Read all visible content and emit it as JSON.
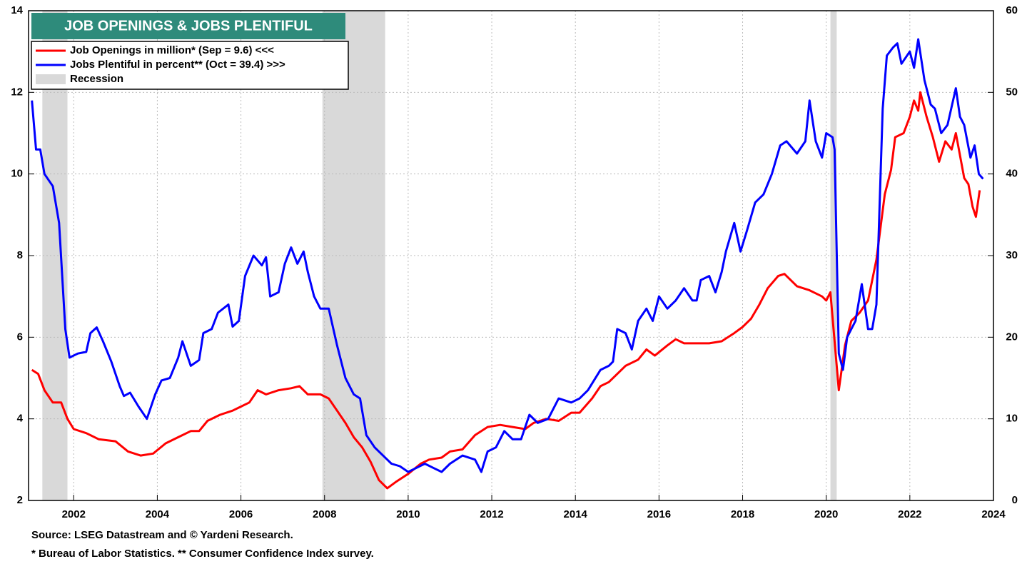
{
  "chart_data": {
    "type": "line",
    "title": "JOB OPENINGS & JOBS PLENTIFUL",
    "footnotes": [
      "Source: LSEG Datastream and © Yardeni Research.",
      "* Bureau of Labor Statistics.  ** Consumer Confidence Index survey."
    ],
    "xlim": [
      2000.92,
      2024
    ],
    "xticks": [
      2002,
      2004,
      2006,
      2008,
      2010,
      2012,
      2014,
      2016,
      2018,
      2020,
      2022,
      2024
    ],
    "ylim": [
      2,
      14
    ],
    "yticks": [
      2,
      4,
      6,
      8,
      10,
      12,
      14
    ],
    "y2lim": [
      0,
      60
    ],
    "y2ticks": [
      0,
      10,
      20,
      30,
      40,
      50,
      60
    ],
    "grid": true,
    "recession_label": "Recession",
    "recession_color": "#d9d9d9",
    "recessions": [
      [
        2001.25,
        2001.85
      ],
      [
        2007.95,
        2009.45
      ],
      [
        2020.1,
        2020.25
      ]
    ],
    "series": [
      {
        "name": "Job Openings in million* (Sep = 9.6) <<<",
        "color": "#ff0000",
        "axis": "y",
        "x": [
          2001.0,
          2001.15,
          2001.3,
          2001.5,
          2001.7,
          2001.85,
          2002.0,
          2002.3,
          2002.6,
          2003.0,
          2003.3,
          2003.6,
          2003.9,
          2004.2,
          2004.5,
          2004.8,
          2005.0,
          2005.2,
          2005.5,
          2005.8,
          2006.0,
          2006.2,
          2006.4,
          2006.6,
          2006.9,
          2007.2,
          2007.4,
          2007.6,
          2007.9,
          2008.1,
          2008.3,
          2008.5,
          2008.7,
          2008.9,
          2009.1,
          2009.3,
          2009.5,
          2009.7,
          2010.0,
          2010.3,
          2010.5,
          2010.8,
          2011.0,
          2011.3,
          2011.6,
          2011.9,
          2012.2,
          2012.5,
          2012.8,
          2013.0,
          2013.3,
          2013.6,
          2013.9,
          2014.1,
          2014.4,
          2014.6,
          2014.8,
          2015.0,
          2015.2,
          2015.5,
          2015.7,
          2015.9,
          2016.2,
          2016.4,
          2016.6,
          2016.9,
          2017.2,
          2017.5,
          2017.8,
          2018.0,
          2018.2,
          2018.4,
          2018.6,
          2018.85,
          2019.0,
          2019.3,
          2019.6,
          2019.9,
          2020.0,
          2020.1,
          2020.3,
          2020.45,
          2020.6,
          2020.8,
          2021.0,
          2021.2,
          2021.4,
          2021.55,
          2021.65,
          2021.85,
          2022.0,
          2022.1,
          2022.2,
          2022.25,
          2022.4,
          2022.55,
          2022.7,
          2022.85,
          2023.0,
          2023.1,
          2023.3,
          2023.4,
          2023.5,
          2023.58,
          2023.67
        ],
        "values": [
          5.2,
          5.1,
          4.7,
          4.4,
          4.4,
          4.0,
          3.75,
          3.65,
          3.5,
          3.45,
          3.2,
          3.1,
          3.15,
          3.4,
          3.55,
          3.7,
          3.7,
          3.95,
          4.1,
          4.2,
          4.3,
          4.4,
          4.7,
          4.6,
          4.7,
          4.75,
          4.8,
          4.6,
          4.6,
          4.5,
          4.2,
          3.9,
          3.55,
          3.3,
          2.95,
          2.5,
          2.3,
          2.45,
          2.65,
          2.9,
          3.0,
          3.05,
          3.2,
          3.25,
          3.6,
          3.8,
          3.85,
          3.8,
          3.75,
          3.9,
          4.0,
          3.95,
          4.15,
          4.15,
          4.5,
          4.8,
          4.9,
          5.1,
          5.3,
          5.45,
          5.7,
          5.55,
          5.8,
          5.95,
          5.85,
          5.85,
          5.85,
          5.9,
          6.1,
          6.25,
          6.45,
          6.8,
          7.2,
          7.5,
          7.55,
          7.25,
          7.15,
          7.0,
          6.9,
          7.1,
          4.7,
          5.8,
          6.4,
          6.6,
          6.9,
          7.9,
          9.5,
          10.1,
          10.9,
          11.0,
          11.4,
          11.8,
          11.55,
          12.0,
          11.4,
          10.9,
          10.3,
          10.8,
          10.6,
          11.0,
          9.9,
          9.75,
          9.2,
          8.95,
          9.6
        ]
      },
      {
        "name": "Jobs Plentiful in percent** (Oct = 39.4) >>>",
        "color": "#0000ff",
        "axis": "y2",
        "x": [
          2001.0,
          2001.1,
          2001.2,
          2001.3,
          2001.5,
          2001.65,
          2001.8,
          2001.9,
          2002.1,
          2002.3,
          2002.4,
          2002.55,
          2002.7,
          2002.9,
          2003.1,
          2003.2,
          2003.35,
          2003.55,
          2003.75,
          2003.95,
          2004.1,
          2004.3,
          2004.5,
          2004.6,
          2004.8,
          2005.0,
          2005.1,
          2005.3,
          2005.45,
          2005.7,
          2005.8,
          2005.95,
          2006.1,
          2006.3,
          2006.5,
          2006.6,
          2006.7,
          2006.9,
          2007.05,
          2007.2,
          2007.35,
          2007.5,
          2007.6,
          2007.75,
          2007.9,
          2008.1,
          2008.3,
          2008.5,
          2008.7,
          2008.85,
          2009.0,
          2009.2,
          2009.4,
          2009.6,
          2009.8,
          2010.0,
          2010.2,
          2010.4,
          2010.6,
          2010.8,
          2011.0,
          2011.3,
          2011.6,
          2011.75,
          2011.9,
          2012.1,
          2012.3,
          2012.5,
          2012.7,
          2012.9,
          2013.1,
          2013.35,
          2013.6,
          2013.9,
          2014.1,
          2014.3,
          2014.6,
          2014.8,
          2014.9,
          2015.0,
          2015.2,
          2015.35,
          2015.5,
          2015.7,
          2015.85,
          2016.0,
          2016.2,
          2016.4,
          2016.6,
          2016.8,
          2016.9,
          2017.0,
          2017.2,
          2017.35,
          2017.5,
          2017.6,
          2017.8,
          2017.95,
          2018.1,
          2018.3,
          2018.5,
          2018.7,
          2018.9,
          2019.05,
          2019.3,
          2019.5,
          2019.6,
          2019.75,
          2019.9,
          2020.0,
          2020.15,
          2020.2,
          2020.3,
          2020.4,
          2020.5,
          2020.7,
          2020.85,
          2021.0,
          2021.1,
          2021.2,
          2021.35,
          2021.45,
          2021.6,
          2021.7,
          2021.8,
          2022.0,
          2022.1,
          2022.2,
          2022.35,
          2022.5,
          2022.6,
          2022.75,
          2022.9,
          2023.1,
          2023.2,
          2023.3,
          2023.45,
          2023.55,
          2023.65,
          2023.75
        ],
        "values": [
          49,
          43,
          43,
          40,
          38.5,
          34,
          21,
          17.5,
          18,
          18.2,
          20.5,
          21.2,
          19.5,
          17,
          14,
          12.8,
          13.2,
          11.5,
          10,
          13,
          14.7,
          15,
          17.5,
          19.5,
          16.5,
          17.2,
          20.5,
          21,
          23,
          24,
          21.3,
          22,
          27.5,
          30,
          28.8,
          29.8,
          25,
          25.5,
          29,
          31,
          29,
          30.5,
          28,
          25,
          23.5,
          23.5,
          19,
          15,
          13,
          12.5,
          8,
          6.5,
          5.5,
          4.5,
          4.2,
          3.5,
          4.0,
          4.5,
          4.0,
          3.5,
          4.5,
          5.5,
          5.0,
          3.5,
          6,
          6.5,
          8.5,
          7.5,
          7.5,
          10.5,
          9.5,
          10,
          12.5,
          12,
          12.5,
          13.5,
          16,
          16.5,
          17,
          21,
          20.5,
          18.5,
          22,
          23.5,
          22,
          25,
          23.5,
          24.5,
          26,
          24.5,
          24.5,
          27,
          27.5,
          25.5,
          28,
          30.5,
          34,
          30.5,
          33,
          36.5,
          37.5,
          40,
          43.5,
          44,
          42.5,
          44,
          49,
          44,
          42,
          45,
          44.5,
          43,
          18,
          16,
          20,
          22,
          26.5,
          21,
          21,
          24,
          48,
          54.5,
          55.5,
          56,
          53.5,
          55,
          53,
          56.5,
          51.5,
          48.5,
          48,
          45,
          46,
          50.5,
          47,
          46,
          42,
          43.5,
          40,
          39.4
        ]
      }
    ]
  }
}
